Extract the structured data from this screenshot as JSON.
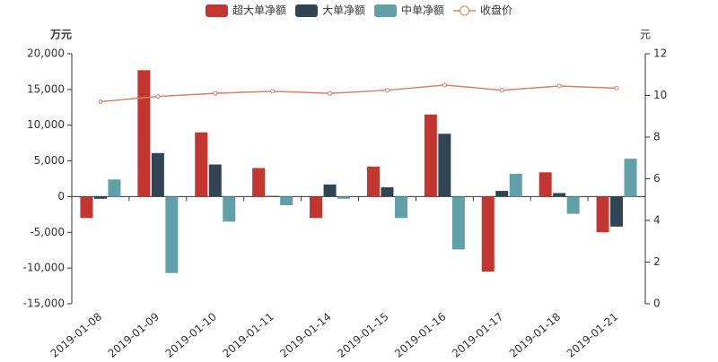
{
  "chart_data": {
    "type": "bar",
    "categories": [
      "2019-01-08",
      "2019-01-09",
      "2019-01-10",
      "2019-01-11",
      "2019-01-14",
      "2019-01-15",
      "2019-01-16",
      "2019-01-17",
      "2019-01-18",
      "2019-01-21"
    ],
    "y_label": "万元",
    "y2_label": "元",
    "series": [
      {
        "name": "超大单净额",
        "type": "bar",
        "color": "#c23531",
        "values": [
          -3000,
          17700,
          9000,
          4000,
          -3000,
          4200,
          11500,
          -10500,
          3400,
          -5000
        ]
      },
      {
        "name": "大单净额",
        "type": "bar",
        "color": "#2f4554",
        "values": [
          -300,
          6100,
          4500,
          100,
          1700,
          1300,
          8800,
          800,
          500,
          -4200
        ]
      },
      {
        "name": "中单净额",
        "type": "bar",
        "color": "#61a0a8",
        "values": [
          2400,
          -10700,
          -3500,
          -1200,
          -300,
          -3000,
          -7400,
          3200,
          -2400,
          5300
        ]
      },
      {
        "name": "收盘价",
        "type": "line",
        "axis": "y2",
        "color": "#d48265",
        "values": [
          9.7,
          9.95,
          10.1,
          10.2,
          10.1,
          10.25,
          10.5,
          10.25,
          10.45,
          10.35
        ]
      }
    ],
    "ylim": [
      -15000,
      20000
    ],
    "yticks": [
      {
        "value": -15000,
        "label": "-15,000"
      },
      {
        "value": -10000,
        "label": "-10,000"
      },
      {
        "value": -5000,
        "label": "-5,000"
      },
      0,
      {
        "value": 5000,
        "label": "5,000"
      },
      {
        "value": 10000,
        "label": "10,000"
      },
      {
        "value": 15000,
        "label": "15,000"
      },
      {
        "value": 20000,
        "label": "20,000"
      }
    ],
    "y2lim": [
      0,
      12
    ],
    "y2ticks": [
      0,
      2,
      4,
      6,
      8,
      10,
      12
    ],
    "grid": false
  }
}
